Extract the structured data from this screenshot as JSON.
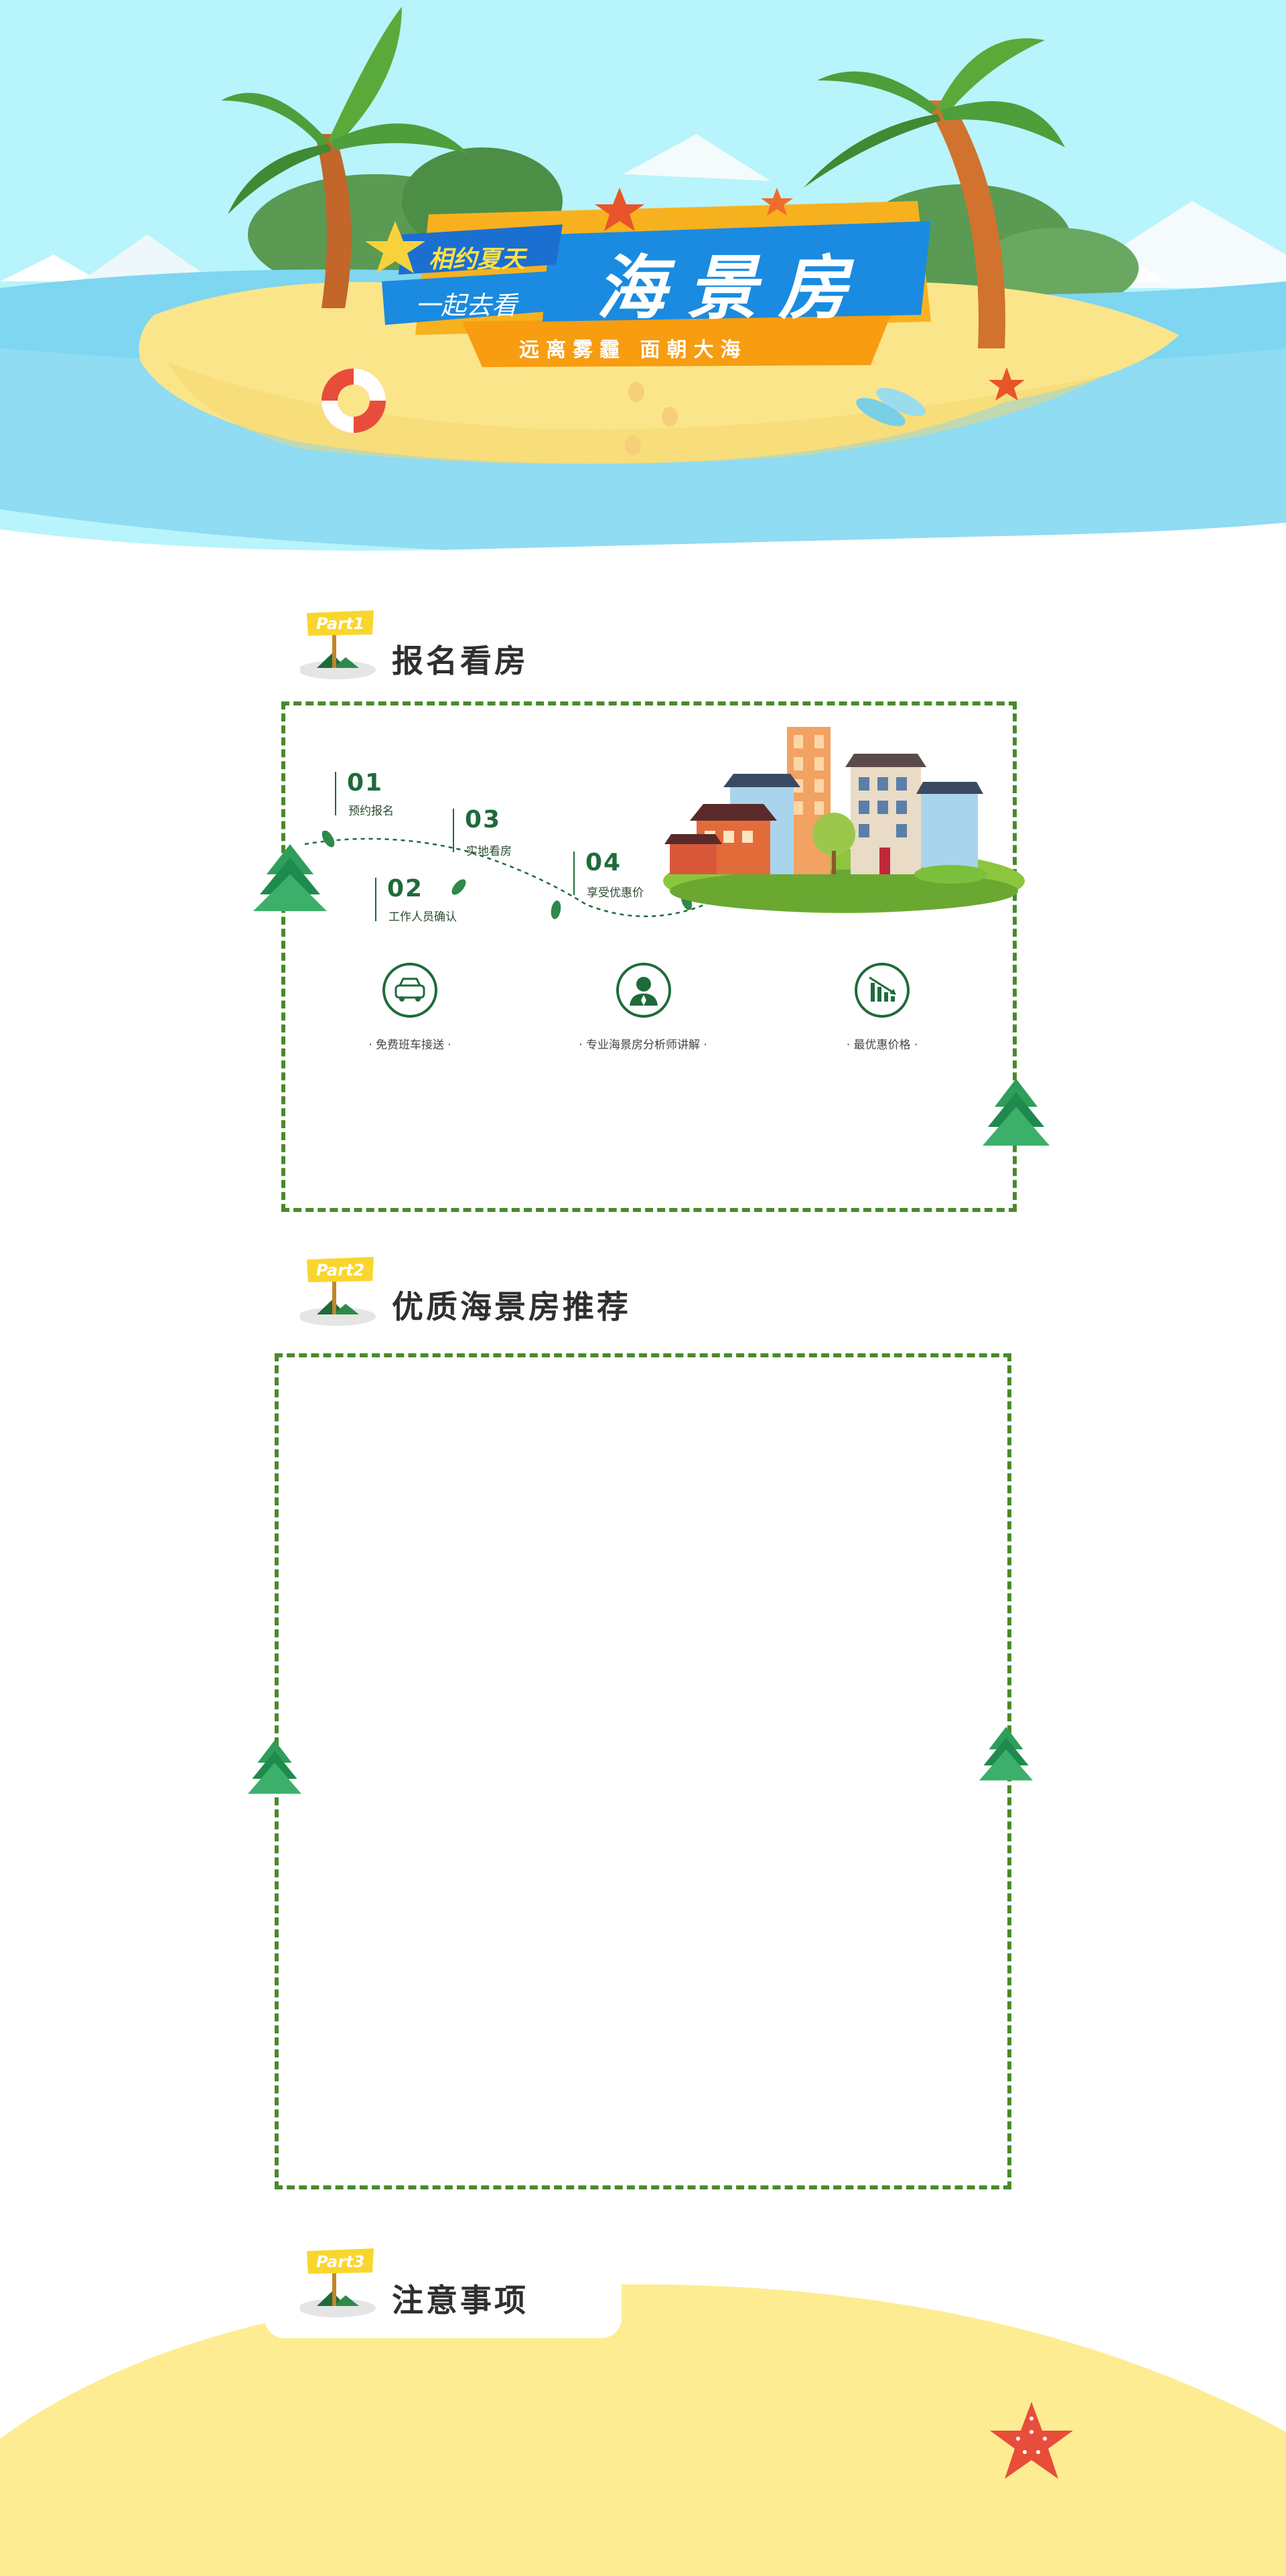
{
  "banner": {
    "tag_line_1": "相约夏天",
    "tag_line_2": "一起去看",
    "main_title": "海景房",
    "sub_title": "远离雾霾  面朝大海"
  },
  "sections": [
    {
      "badge": "Part1",
      "title": "报名看房"
    },
    {
      "badge": "Part2",
      "title": "优质海景房推荐"
    },
    {
      "badge": "Part3",
      "title": "注意事项"
    }
  ],
  "steps": [
    {
      "num": "01",
      "label": "预约报名"
    },
    {
      "num": "02",
      "label": "工作人员确认"
    },
    {
      "num": "03",
      "label": "实地看房"
    },
    {
      "num": "04",
      "label": "享受优惠价"
    }
  ],
  "features": [
    {
      "icon": "car-icon",
      "label": "· 免费班车接送 ·"
    },
    {
      "icon": "advisor-icon",
      "label": "· 专业海景房分析师讲解 ·"
    },
    {
      "icon": "price-down-icon",
      "label": "· 最优惠价格 ·"
    }
  ],
  "colors": {
    "sky": "#b8f4fb",
    "sea": "#7fd6f0",
    "sand": "#fde98a",
    "frame_green": "#4a8a2c",
    "title_blue": "#1a8be0",
    "banner_orange": "#f7b11e"
  }
}
